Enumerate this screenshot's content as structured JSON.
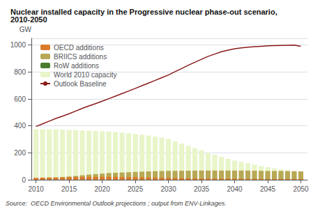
{
  "chart_data": {
    "type": "bar",
    "title": "Nuclear installed capacity in the Progressive nuclear phase-out scenario, 2010-2050",
    "y_label": "GW",
    "annotations": [
      "Source:  OECD Environmental Outlook projections ; output from ENV-Linkages."
    ],
    "x": [
      2010,
      2011,
      2012,
      2013,
      2014,
      2015,
      2016,
      2017,
      2018,
      2019,
      2020,
      2021,
      2022,
      2023,
      2024,
      2025,
      2026,
      2027,
      2028,
      2029,
      2030,
      2031,
      2032,
      2033,
      2034,
      2035,
      2036,
      2037,
      2038,
      2039,
      2040,
      2041,
      2042,
      2043,
      2044,
      2045,
      2046,
      2047,
      2048,
      2049,
      2050
    ],
    "series": [
      {
        "name": "World 2010 capacity",
        "color": "#e8f5c8",
        "values": [
          375,
          375,
          375,
          375,
          372,
          370,
          368,
          366,
          364,
          362,
          360,
          358,
          354,
          350,
          345,
          340,
          334,
          328,
          320,
          312,
          303,
          285,
          268,
          252,
          235,
          218,
          200,
          185,
          170,
          156,
          143,
          132,
          122,
          112,
          102,
          93,
          85,
          78,
          71,
          65,
          60
        ]
      },
      {
        "name": "RoW additions",
        "color": "#4a7c2e",
        "values": [
          0,
          0,
          0,
          0,
          0,
          0,
          0,
          0,
          0,
          0,
          0,
          0,
          0,
          0,
          0,
          0,
          0,
          0,
          0,
          0,
          0,
          0,
          0,
          0,
          0,
          0,
          2,
          4,
          5,
          6,
          7,
          8,
          8,
          8,
          8,
          8,
          8,
          8,
          8,
          8,
          8
        ]
      },
      {
        "name": "BRIICS additions",
        "color": "#b8a855",
        "values": [
          5,
          8,
          12,
          16,
          20,
          24,
          28,
          33,
          38,
          42,
          46,
          50,
          52,
          54,
          56,
          58,
          60,
          62,
          64,
          65,
          66,
          66,
          67,
          67,
          68,
          68,
          68,
          68,
          68,
          68,
          68,
          68,
          68,
          67,
          66,
          65,
          65,
          65,
          64,
          63,
          62
        ]
      },
      {
        "name": "OECD additions",
        "color": "#d97b2a",
        "values": [
          14,
          16,
          17,
          17,
          18,
          19,
          20,
          21,
          22,
          22,
          22,
          22,
          22,
          21,
          20,
          19,
          18,
          17,
          16,
          15,
          14,
          13,
          12,
          11,
          10,
          9,
          9,
          8,
          8,
          8,
          7,
          7,
          6,
          6,
          6,
          5,
          5,
          5,
          5,
          5,
          5
        ]
      },
      {
        "name": "Outlook Baseline",
        "type": "line",
        "color": "#8b1a1a",
        "values": [
          395,
          415,
          435,
          455,
          472,
          490,
          510,
          530,
          548,
          565,
          583,
          602,
          621,
          640,
          659,
          678,
          698,
          718,
          738,
          758,
          778,
          802,
          826,
          850,
          872,
          894,
          916,
          933,
          950,
          962,
          972,
          979,
          984,
          988,
          991,
          994,
          996,
          997,
          998,
          999,
          990
        ]
      }
    ],
    "stacked": true,
    "xlim": [
      2009.3,
      2051
    ],
    "xticks": [
      2010,
      2015,
      2020,
      2025,
      2030,
      2035,
      2040,
      2045,
      2050
    ],
    "ylim": [
      0,
      1050
    ],
    "yticks": [
      0,
      200,
      400,
      600,
      800,
      1000
    ],
    "grid": true,
    "legend": "upper left"
  }
}
